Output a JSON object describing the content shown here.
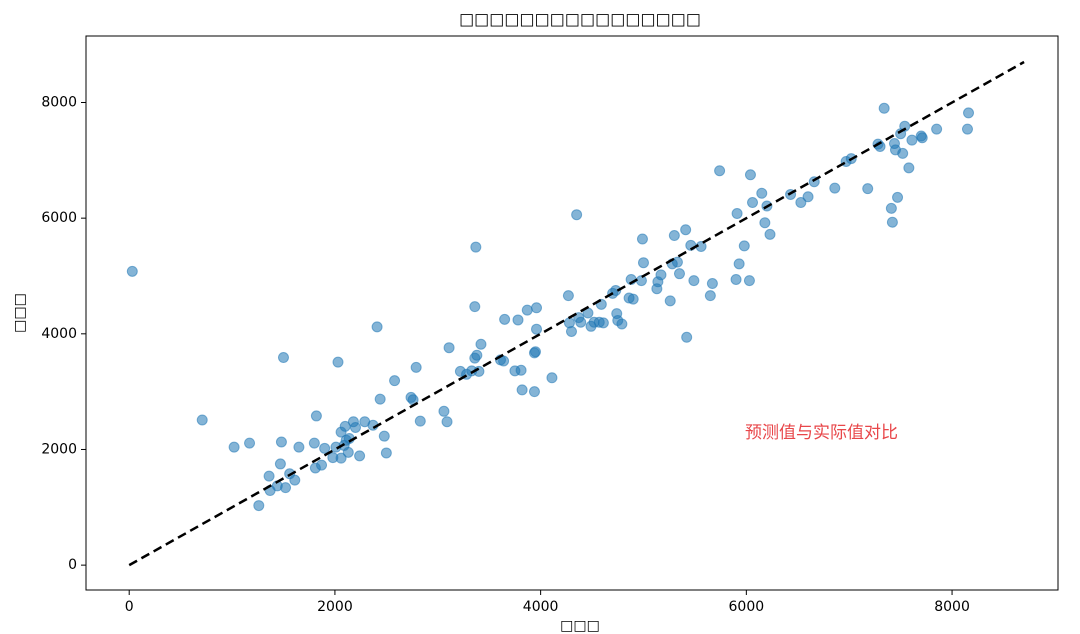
{
  "chart_data": {
    "type": "scatter",
    "title": "□□□□□□□□□□□□□□□□",
    "x_label": "□□□",
    "y_label": "□□□",
    "annotation": "预测值与实际值对比",
    "annotation_color": "#e8474a",
    "color": "#1f77b4",
    "alpha": 0.55,
    "xlim": [
      -420,
      9030
    ],
    "ylim": [
      -430,
      9150
    ],
    "xticks": [
      0,
      2000,
      4000,
      6000,
      8000
    ],
    "yticks": [
      0,
      2000,
      4000,
      6000,
      8000
    ],
    "grid": false,
    "reference_line": {
      "x": [
        0,
        8700
      ],
      "y": [
        0,
        8700
      ],
      "color": "#000000",
      "dashed": true
    },
    "x": [
      30,
      710,
      1020,
      1170,
      1260,
      1360,
      1370,
      1440,
      1470,
      1480,
      1500,
      1520,
      1560,
      1610,
      1650,
      1800,
      1810,
      1820,
      1870,
      1900,
      1980,
      2010,
      2030,
      2060,
      2060,
      2090,
      2100,
      2110,
      2130,
      2140,
      2180,
      2200,
      2240,
      2290,
      2370,
      2410,
      2440,
      2480,
      2500,
      2580,
      2740,
      2760,
      2790,
      2830,
      3060,
      3090,
      3110,
      3220,
      3280,
      3330,
      3360,
      3360,
      3370,
      3380,
      3400,
      3420,
      3610,
      3640,
      3650,
      3750,
      3780,
      3810,
      3820,
      3870,
      3940,
      3940,
      3950,
      3960,
      3960,
      4110,
      4270,
      4280,
      4300,
      4350,
      4370,
      4390,
      4460,
      4490,
      4520,
      4570,
      4590,
      4610,
      4700,
      4730,
      4740,
      4750,
      4790,
      4860,
      4880,
      4900,
      4980,
      4990,
      5000,
      5130,
      5140,
      5170,
      5260,
      5280,
      5300,
      5330,
      5350,
      5410,
      5420,
      5460,
      5490,
      5560,
      5650,
      5670,
      5740,
      5900,
      5910,
      5930,
      5980,
      6030,
      6040,
      6060,
      6150,
      6180,
      6200,
      6230,
      6430,
      6530,
      6600,
      6660,
      6860,
      6970,
      7020,
      7180,
      7280,
      7300,
      7340,
      7410,
      7420,
      7440,
      7450,
      7470,
      7500,
      7520,
      7540,
      7580,
      7610,
      7700,
      7710,
      7850,
      8150,
      8160
    ],
    "y": [
      5080,
      2510,
      2040,
      2110,
      1030,
      1540,
      1290,
      1370,
      1750,
      2130,
      3590,
      1340,
      1580,
      1470,
      2040,
      2110,
      1680,
      2580,
      1730,
      2020,
      1860,
      2040,
      3510,
      2300,
      1850,
      2070,
      2400,
      2160,
      1950,
      2190,
      2480,
      2380,
      1890,
      2480,
      2420,
      4120,
      2870,
      2230,
      1940,
      3190,
      2900,
      2860,
      3420,
      2490,
      2660,
      2480,
      3760,
      3350,
      3300,
      3360,
      3580,
      4470,
      5500,
      3630,
      3350,
      3820,
      3550,
      3530,
      4250,
      3360,
      4240,
      3370,
      3030,
      4410,
      3670,
      3000,
      3690,
      4450,
      4080,
      3240,
      4660,
      4190,
      4040,
      6060,
      4280,
      4200,
      4360,
      4130,
      4200,
      4200,
      4510,
      4190,
      4700,
      4750,
      4350,
      4230,
      4170,
      4620,
      4940,
      4600,
      4920,
      5640,
      5230,
      4780,
      4900,
      5020,
      4570,
      5210,
      5700,
      5240,
      5040,
      5800,
      3940,
      5530,
      4920,
      5510,
      4660,
      4870,
      6820,
      4940,
      6080,
      5210,
      5520,
      4920,
      6750,
      6270,
      6430,
      5920,
      6210,
      5720,
      6410,
      6270,
      6370,
      6630,
      6520,
      6980,
      7030,
      6510,
      7280,
      7240,
      7900,
      6170,
      5930,
      7290,
      7180,
      6360,
      7460,
      7120,
      7590,
      6870,
      7350,
      7420,
      7390,
      7540,
      7540,
      7820
    ]
  }
}
